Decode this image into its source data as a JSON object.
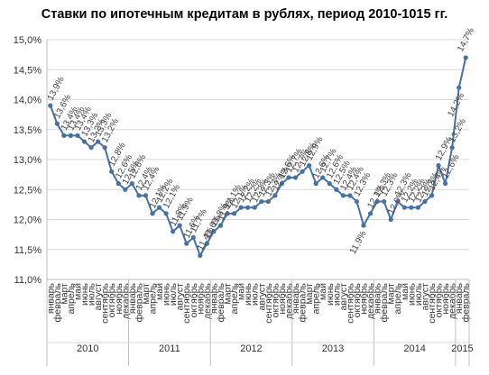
{
  "chart_data": {
    "type": "line",
    "title": "Ставки по ипотечным кредитам в рублях, период 2010-1015 гг.",
    "xlabel": "",
    "ylabel": "",
    "ylim": [
      11.0,
      15.0
    ],
    "yticks": [
      "11,0%",
      "11,5%",
      "12,0%",
      "12,5%",
      "13,0%",
      "13,5%",
      "14,0%",
      "14,5%",
      "15,0%"
    ],
    "grid": true,
    "line_color": "#4472a8",
    "years": [
      {
        "label": "2010",
        "months": 12
      },
      {
        "label": "2011",
        "months": 12
      },
      {
        "label": "2012",
        "months": 12
      },
      {
        "label": "2013",
        "months": 12
      },
      {
        "label": "2014",
        "months": 12
      },
      {
        "label": "2015",
        "months": 2
      }
    ],
    "categories": [
      "январь",
      "февраль",
      "март",
      "апрель",
      "май",
      "июнь",
      "июль",
      "август",
      "сентябрь",
      "октябрь",
      "ноябрь",
      "декабрь",
      "январь",
      "февраль",
      "март",
      "апрель",
      "май",
      "июнь",
      "июль",
      "август",
      "сентябрь",
      "октябрь",
      "ноябрь",
      "декабрь",
      "январь",
      "февраль",
      "март",
      "апрель",
      "май",
      "июнь",
      "июль",
      "август",
      "сентябрь",
      "октябрь",
      "ноябрь",
      "декабрь",
      "январь",
      "февраль",
      "март",
      "апрель",
      "май",
      "июнь",
      "июль",
      "август",
      "сентябрь",
      "октябрь",
      "ноябрь",
      "декабрь",
      "январь",
      "февраль",
      "март",
      "апрель",
      "май",
      "июнь",
      "июль",
      "август",
      "сентябрь",
      "октябрь",
      "ноябрь",
      "декабрь",
      "январь",
      "февраль"
    ],
    "values": [
      13.9,
      13.6,
      13.4,
      13.4,
      13.4,
      13.3,
      13.2,
      13.3,
      13.2,
      12.8,
      12.6,
      12.5,
      12.6,
      12.4,
      12.4,
      12.1,
      12.2,
      12.1,
      11.8,
      11.9,
      11.6,
      11.7,
      11.4,
      11.6,
      11.8,
      11.9,
      12.1,
      12.1,
      12.2,
      12.2,
      12.2,
      12.3,
      12.3,
      12.4,
      12.6,
      12.7,
      12.7,
      12.8,
      12.9,
      12.6,
      12.7,
      12.6,
      12.5,
      12.4,
      12.4,
      12.3,
      11.9,
      12.1,
      12.3,
      12.3,
      12.0,
      12.3,
      12.2,
      12.2,
      12.2,
      12.3,
      12.4,
      12.9,
      12.6,
      13.2,
      14.2,
      14.7
    ],
    "data_labels": [
      "13,9%",
      "13,6%",
      "13,4%",
      "13,4%",
      "13,4%",
      "13,3%",
      "13,2%",
      "13,3%",
      "13,2%",
      "12,8%",
      "12,6%",
      "12,5%",
      "12,6%",
      "12,4%",
      "12,4%",
      "12,1%",
      "12,2%",
      "12,1%",
      "11,8%",
      "11,9%",
      "11,6%",
      "11,7%",
      "11,4%",
      "11,6%",
      "11,8%",
      "11,9%",
      "12,1%",
      "12,1%",
      "12,2%",
      "12,2%",
      "12,2%",
      "12,3%",
      "12,3%",
      "12,4%",
      "12,6%",
      "12,7%",
      "12,7%",
      "12,8%",
      "12,9%",
      "12,6%",
      "12,7%",
      "12,6%",
      "12,5%",
      "12,4%",
      "12,4%",
      "12,3%",
      "11,9%",
      "12,1%",
      "12,3%",
      "12,3%",
      "12,0%",
      "12,3%",
      "12,2%",
      "12,2%",
      "12,2%",
      "12,3%",
      "12,4%",
      "12,9%",
      "12,6%",
      "13,2%",
      "14,2%",
      "14,7%"
    ]
  }
}
